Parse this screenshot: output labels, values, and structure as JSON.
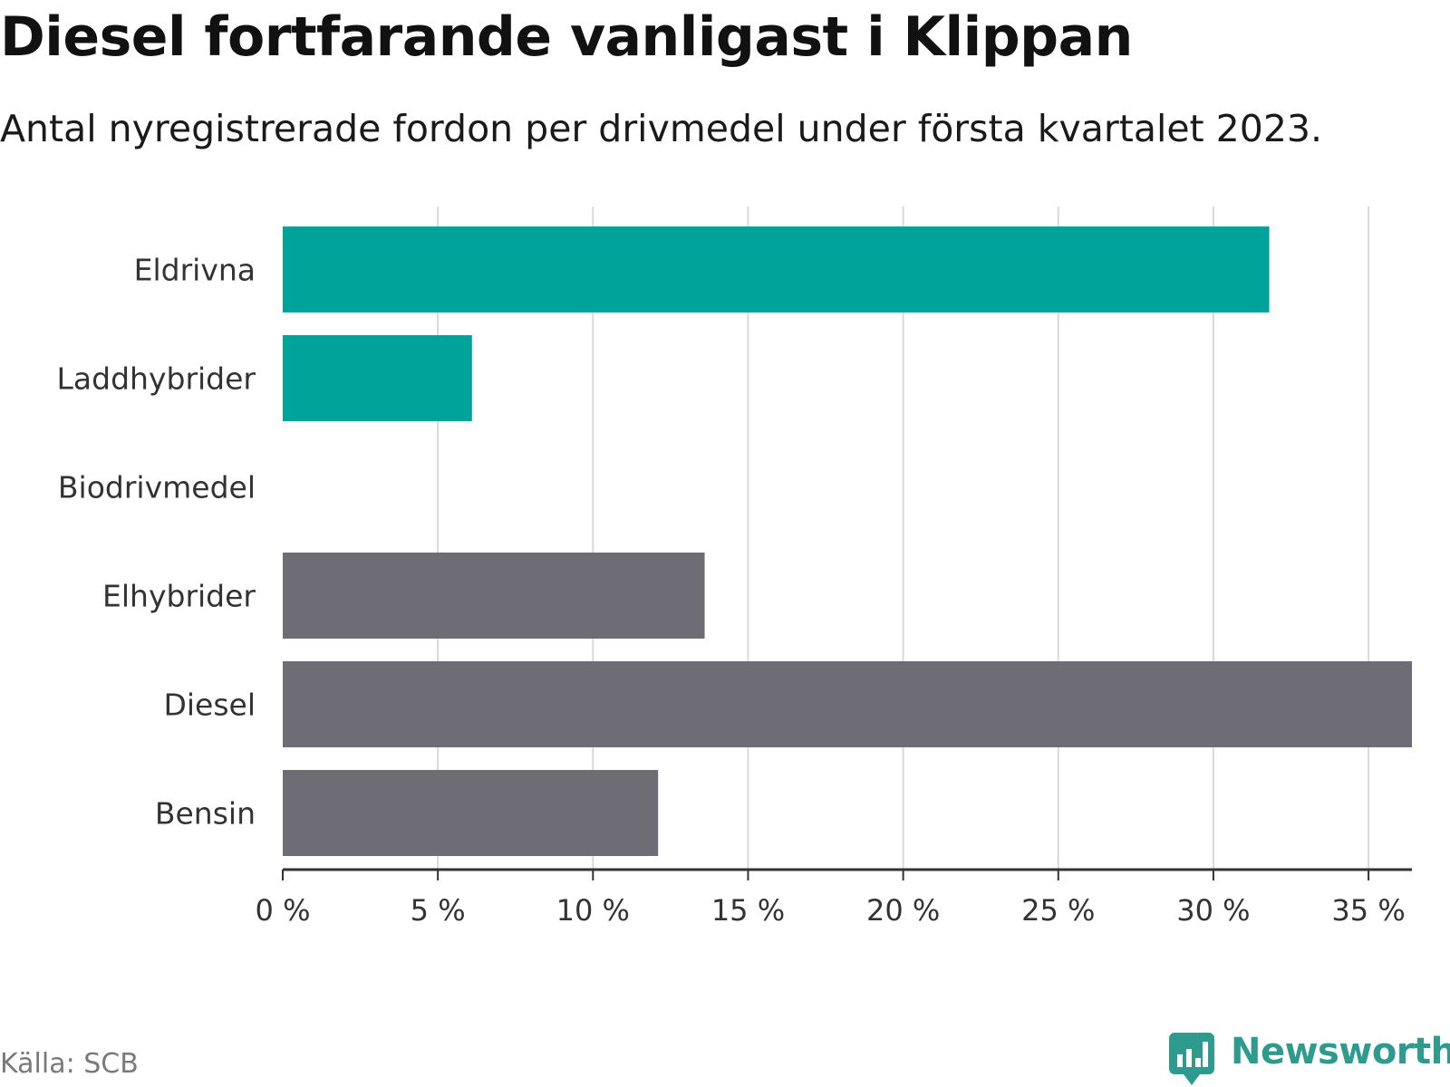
{
  "title": "Diesel fortfarande vanligast i Klippan",
  "subtitle": "Antal nyregistrerade fordon per drivmedel under första kvartalet 2023.",
  "source": "Källa: SCB",
  "brand": {
    "name": "Newsworthy",
    "icon": "bar-chart-speech-bubble-icon",
    "color": "#2f9a8e"
  },
  "colors": {
    "highlight": "#00a39a",
    "default": "#6e6d75",
    "grid": "#d9d9d9",
    "axis": "#333333"
  },
  "chart_data": {
    "type": "bar",
    "orientation": "horizontal",
    "categories": [
      "Eldrivna",
      "Laddhybrider",
      "Biodrivmedel",
      "Elhybrider",
      "Diesel",
      "Bensin"
    ],
    "values": [
      31.8,
      6.1,
      0,
      13.6,
      36.4,
      12.1
    ],
    "highlighted": [
      true,
      true,
      false,
      false,
      false,
      false
    ],
    "xlim": [
      0,
      36.4
    ],
    "ticks": [
      0,
      5,
      10,
      15,
      20,
      25,
      30,
      35
    ],
    "tick_labels": [
      "0 %",
      "5 %",
      "10 %",
      "15 %",
      "20 %",
      "25 %",
      "30 %",
      "35 %"
    ],
    "xlabel": "",
    "ylabel": "",
    "grid": true,
    "legend": "none"
  }
}
